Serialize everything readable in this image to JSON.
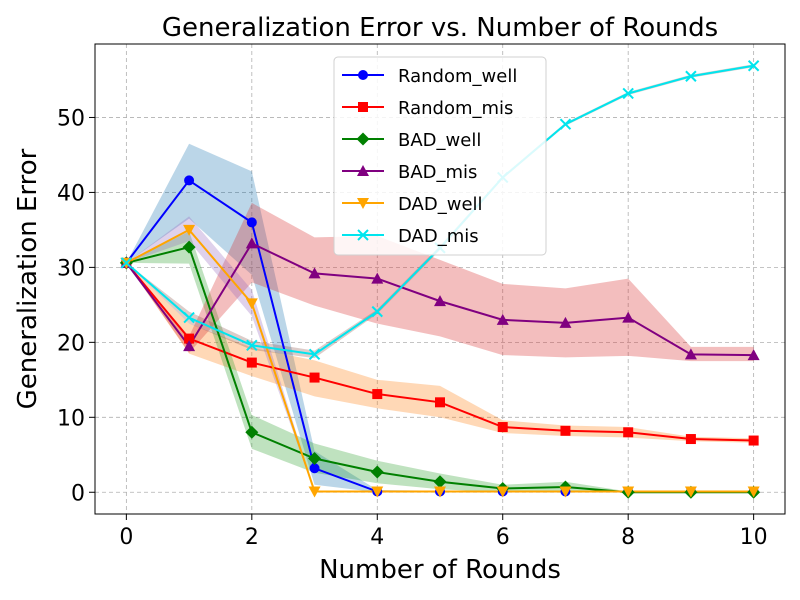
{
  "chart_data": {
    "type": "line",
    "title": "Generalization Error vs. Number of Rounds",
    "xlabel": "Number of Rounds",
    "ylabel": "Generalization Error",
    "xlim": [
      -0.5,
      10.5
    ],
    "ylim": [
      -2.9,
      59.8
    ],
    "xticks": [
      0,
      2,
      4,
      6,
      8,
      10
    ],
    "yticks": [
      0,
      10,
      20,
      30,
      40,
      50
    ],
    "grid": true,
    "legend": "top-center",
    "series": [
      {
        "name": "Random_well",
        "color": "#0000ff",
        "marker": "circle",
        "x": [
          0,
          1,
          2,
          3,
          4,
          5,
          6,
          7,
          8,
          9,
          10
        ],
        "values": [
          30.6,
          41.6,
          36.0,
          3.2,
          0.1,
          0.1,
          0.1,
          0.1,
          0.1,
          0.1,
          0.1
        ],
        "band_color": "#1f77b4",
        "band_lower": [
          30.6,
          36.5,
          29.0,
          1.0,
          0.0,
          0.0,
          0.0,
          0.0,
          0.0,
          0.0,
          0.0
        ],
        "band_upper": [
          30.6,
          46.5,
          42.8,
          5.5,
          0.3,
          0.2,
          0.2,
          0.2,
          0.2,
          0.2,
          0.2
        ]
      },
      {
        "name": "Random_mis",
        "color": "#ff0000",
        "marker": "square",
        "x": [
          0,
          1,
          2,
          3,
          4,
          5,
          6,
          7,
          8,
          9,
          10
        ],
        "values": [
          30.6,
          20.5,
          17.3,
          15.3,
          13.1,
          12.0,
          8.7,
          8.2,
          8.0,
          7.1,
          6.9
        ],
        "band_color": "#ff7f0e",
        "band_lower": [
          30.6,
          18.5,
          15.5,
          12.8,
          11.2,
          10.0,
          7.9,
          7.5,
          7.3,
          6.8,
          6.6
        ],
        "band_upper": [
          30.6,
          22.5,
          19.3,
          17.6,
          15.0,
          14.2,
          9.6,
          8.9,
          8.7,
          7.4,
          7.2
        ]
      },
      {
        "name": "BAD_well",
        "color": "#008000",
        "marker": "diamond",
        "x": [
          0,
          1,
          2,
          3,
          4,
          5,
          6,
          7,
          8,
          9,
          10
        ],
        "values": [
          30.6,
          32.7,
          8.0,
          4.5,
          2.7,
          1.4,
          0.5,
          0.7,
          0.0,
          0.0,
          0.0
        ],
        "band_color": "#2ca02c",
        "band_lower": [
          30.6,
          30.5,
          5.8,
          2.6,
          1.2,
          0.4,
          0.0,
          0.0,
          0.0,
          0.0,
          0.0
        ],
        "band_upper": [
          30.6,
          34.8,
          10.3,
          6.5,
          4.2,
          2.5,
          1.0,
          1.4,
          0.1,
          0.1,
          0.1
        ]
      },
      {
        "name": "BAD_mis",
        "color": "#800080",
        "marker": "triangle-up",
        "x": [
          0,
          1,
          2,
          3,
          4,
          5,
          6,
          7,
          8,
          9,
          10
        ],
        "values": [
          30.6,
          19.5,
          33.2,
          29.2,
          28.5,
          25.5,
          23.0,
          22.6,
          23.3,
          18.4,
          18.3
        ],
        "band_color": "#d62728",
        "band_lower": [
          30.6,
          18.6,
          28.0,
          24.9,
          22.5,
          20.8,
          18.3,
          18.0,
          18.2,
          17.5,
          17.5
        ],
        "band_upper": [
          30.6,
          20.8,
          38.6,
          34.0,
          34.2,
          31.0,
          27.8,
          27.2,
          28.5,
          19.4,
          19.4
        ]
      },
      {
        "name": "DAD_well",
        "color": "#ffa500",
        "marker": "triangle-down",
        "x": [
          0,
          1,
          2,
          3,
          4,
          5,
          6,
          7,
          8,
          9,
          10
        ],
        "values": [
          30.6,
          35.0,
          25.2,
          0.1,
          0.1,
          0.1,
          0.1,
          0.1,
          0.1,
          0.1,
          0.1
        ],
        "band_color": "#9467bd",
        "band_lower": [
          30.6,
          33.5,
          23.5,
          0.0,
          0.0,
          0.0,
          0.0,
          0.0,
          0.0,
          0.0,
          0.0
        ],
        "band_upper": [
          30.6,
          36.8,
          27.0,
          0.2,
          0.2,
          0.2,
          0.2,
          0.2,
          0.2,
          0.2,
          0.2
        ]
      },
      {
        "name": "DAD_mis",
        "color": "#00e5ee",
        "marker": "x",
        "x": [
          0,
          1,
          2,
          3,
          4,
          5,
          6,
          7,
          8,
          9,
          10
        ],
        "values": [
          30.6,
          23.3,
          19.6,
          18.4,
          24.1,
          32.6,
          42.0,
          49.1,
          53.2,
          55.5,
          56.9
        ],
        "band_color": "#8c564b",
        "band_lower": [
          30.6,
          22.5,
          19.0,
          17.9,
          23.8,
          32.3,
          41.8,
          48.9,
          53.0,
          55.3,
          56.7
        ],
        "band_upper": [
          30.6,
          24.1,
          20.2,
          18.9,
          24.4,
          32.9,
          42.2,
          49.3,
          53.4,
          55.7,
          57.1
        ]
      }
    ]
  }
}
